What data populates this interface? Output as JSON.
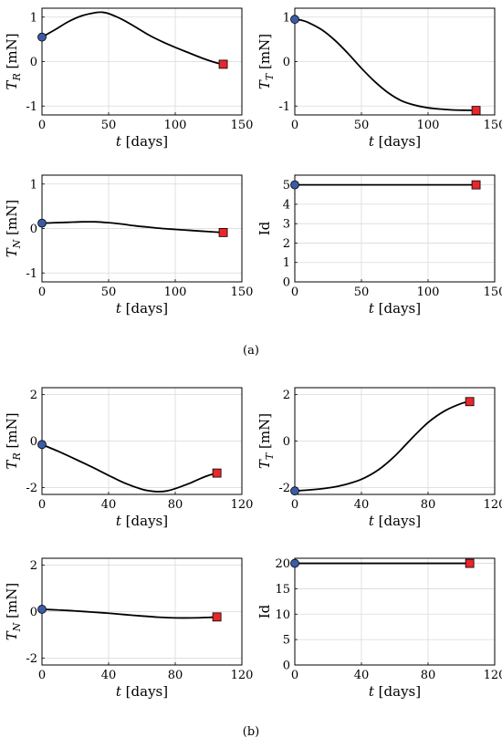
{
  "panel_labels": [
    "(a)",
    "(b)"
  ],
  "chart_data": [
    {
      "id": "a1",
      "type": "line",
      "panel": "(a)",
      "xlabel": "t [days]",
      "ylabel": "T_R [mN]",
      "xlim": [
        0,
        150
      ],
      "ylim": [
        -1.2,
        1.2
      ],
      "xticks": [
        0,
        50,
        100,
        150
      ],
      "yticks": [
        -1,
        0,
        1
      ],
      "grid": true,
      "series": [
        {
          "x": [
            0,
            10,
            20,
            30,
            40,
            45,
            50,
            60,
            70,
            80,
            90,
            100,
            110,
            120,
            130,
            136
          ],
          "y": [
            0.55,
            0.72,
            0.9,
            1.03,
            1.1,
            1.11,
            1.08,
            0.95,
            0.78,
            0.6,
            0.45,
            0.32,
            0.2,
            0.08,
            -0.02,
            -0.06
          ]
        }
      ],
      "start_marker": {
        "x": 0,
        "y": 0.55,
        "color": "#3b5ba5"
      },
      "end_marker": {
        "x": 136,
        "y": -0.06,
        "color": "#e8262b"
      }
    },
    {
      "id": "a2",
      "type": "line",
      "panel": "(a)",
      "xlabel": "t [days]",
      "ylabel": "T_T [mN]",
      "xlim": [
        0,
        150
      ],
      "ylim": [
        -1.2,
        1.2
      ],
      "xticks": [
        0,
        50,
        100,
        150
      ],
      "yticks": [
        -1,
        0,
        1
      ],
      "grid": true,
      "series": [
        {
          "x": [
            0,
            5,
            10,
            20,
            30,
            40,
            50,
            60,
            70,
            80,
            90,
            100,
            110,
            120,
            130,
            136
          ],
          "y": [
            0.95,
            0.93,
            0.88,
            0.72,
            0.48,
            0.18,
            -0.15,
            -0.45,
            -0.7,
            -0.88,
            -0.98,
            -1.04,
            -1.07,
            -1.09,
            -1.095,
            -1.1
          ]
        }
      ],
      "start_marker": {
        "x": 0,
        "y": 0.95,
        "color": "#3b5ba5"
      },
      "end_marker": {
        "x": 136,
        "y": -1.1,
        "color": "#e8262b"
      }
    },
    {
      "id": "a3",
      "type": "line",
      "panel": "(a)",
      "xlabel": "t [days]",
      "ylabel": "T_N [mN]",
      "xlim": [
        0,
        150
      ],
      "ylim": [
        -1.2,
        1.2
      ],
      "xticks": [
        0,
        50,
        100,
        150
      ],
      "yticks": [
        -1,
        0,
        1
      ],
      "grid": true,
      "series": [
        {
          "x": [
            0,
            10,
            20,
            30,
            40,
            50,
            60,
            70,
            80,
            90,
            100,
            110,
            120,
            130,
            136
          ],
          "y": [
            0.12,
            0.13,
            0.14,
            0.15,
            0.15,
            0.13,
            0.1,
            0.06,
            0.03,
            0.0,
            -0.02,
            -0.04,
            -0.06,
            -0.08,
            -0.09
          ]
        }
      ],
      "start_marker": {
        "x": 0,
        "y": 0.12,
        "color": "#3b5ba5"
      },
      "end_marker": {
        "x": 136,
        "y": -0.09,
        "color": "#e8262b"
      }
    },
    {
      "id": "a4",
      "type": "line",
      "panel": "(a)",
      "xlabel": "t [days]",
      "ylabel": "Id",
      "xlim": [
        0,
        150
      ],
      "ylim": [
        0,
        5.5
      ],
      "xticks": [
        0,
        50,
        100,
        150
      ],
      "yticks": [
        0,
        1,
        2,
        3,
        4,
        5
      ],
      "grid": true,
      "series": [
        {
          "x": [
            0,
            136
          ],
          "y": [
            5,
            5
          ]
        }
      ],
      "start_marker": {
        "x": 0,
        "y": 5,
        "color": "#3b5ba5"
      },
      "end_marker": {
        "x": 136,
        "y": 5,
        "color": "#e8262b"
      }
    },
    {
      "id": "b1",
      "type": "line",
      "panel": "(b)",
      "xlabel": "t [days]",
      "ylabel": "T_R [mN]",
      "xlim": [
        0,
        120
      ],
      "ylim": [
        -2.3,
        2.3
      ],
      "xticks": [
        0,
        40,
        80,
        120
      ],
      "yticks": [
        -2,
        0,
        2
      ],
      "grid": true,
      "series": [
        {
          "x": [
            0,
            10,
            20,
            30,
            40,
            50,
            60,
            65,
            70,
            75,
            80,
            85,
            90,
            95,
            100,
            105
          ],
          "y": [
            -0.15,
            -0.45,
            -0.78,
            -1.12,
            -1.48,
            -1.82,
            -2.08,
            -2.15,
            -2.18,
            -2.15,
            -2.05,
            -1.92,
            -1.78,
            -1.62,
            -1.48,
            -1.38
          ]
        }
      ],
      "start_marker": {
        "x": 0,
        "y": -0.15,
        "color": "#3b5ba5"
      },
      "end_marker": {
        "x": 105,
        "y": -1.38,
        "color": "#e8262b"
      }
    },
    {
      "id": "b2",
      "type": "line",
      "panel": "(b)",
      "xlabel": "t [days]",
      "ylabel": "T_T [mN]",
      "xlim": [
        0,
        120
      ],
      "ylim": [
        -2.3,
        2.3
      ],
      "xticks": [
        0,
        40,
        80,
        120
      ],
      "yticks": [
        -2,
        0,
        2
      ],
      "grid": true,
      "series": [
        {
          "x": [
            0,
            10,
            20,
            30,
            40,
            50,
            60,
            70,
            80,
            90,
            100,
            105
          ],
          "y": [
            -2.15,
            -2.1,
            -2.02,
            -1.88,
            -1.65,
            -1.25,
            -0.65,
            0.1,
            0.8,
            1.3,
            1.62,
            1.7
          ]
        }
      ],
      "start_marker": {
        "x": 0,
        "y": -2.15,
        "color": "#3b5ba5"
      },
      "end_marker": {
        "x": 105,
        "y": 1.7,
        "color": "#e8262b"
      }
    },
    {
      "id": "b3",
      "type": "line",
      "panel": "(b)",
      "xlabel": "t [days]",
      "ylabel": "T_N [mN]",
      "xlim": [
        0,
        120
      ],
      "ylim": [
        -2.3,
        2.3
      ],
      "xticks": [
        0,
        40,
        80,
        120
      ],
      "yticks": [
        -2,
        0,
        2
      ],
      "grid": true,
      "series": [
        {
          "x": [
            0,
            10,
            20,
            30,
            40,
            50,
            60,
            70,
            80,
            90,
            100,
            105
          ],
          "y": [
            0.1,
            0.07,
            0.03,
            -0.02,
            -0.07,
            -0.13,
            -0.19,
            -0.24,
            -0.27,
            -0.27,
            -0.25,
            -0.23
          ]
        }
      ],
      "start_marker": {
        "x": 0,
        "y": 0.1,
        "color": "#3b5ba5"
      },
      "end_marker": {
        "x": 105,
        "y": -0.23,
        "color": "#e8262b"
      }
    },
    {
      "id": "b4",
      "type": "line",
      "panel": "(b)",
      "xlabel": "t [days]",
      "ylabel": "Id",
      "xlim": [
        0,
        120
      ],
      "ylim": [
        0,
        21
      ],
      "xticks": [
        0,
        40,
        80,
        120
      ],
      "yticks": [
        0,
        5,
        10,
        15,
        20
      ],
      "grid": true,
      "series": [
        {
          "x": [
            0,
            105
          ],
          "y": [
            20,
            20
          ]
        }
      ],
      "start_marker": {
        "x": 0,
        "y": 20,
        "color": "#3b5ba5"
      },
      "end_marker": {
        "x": 105,
        "y": 20,
        "color": "#e8262b"
      }
    }
  ]
}
